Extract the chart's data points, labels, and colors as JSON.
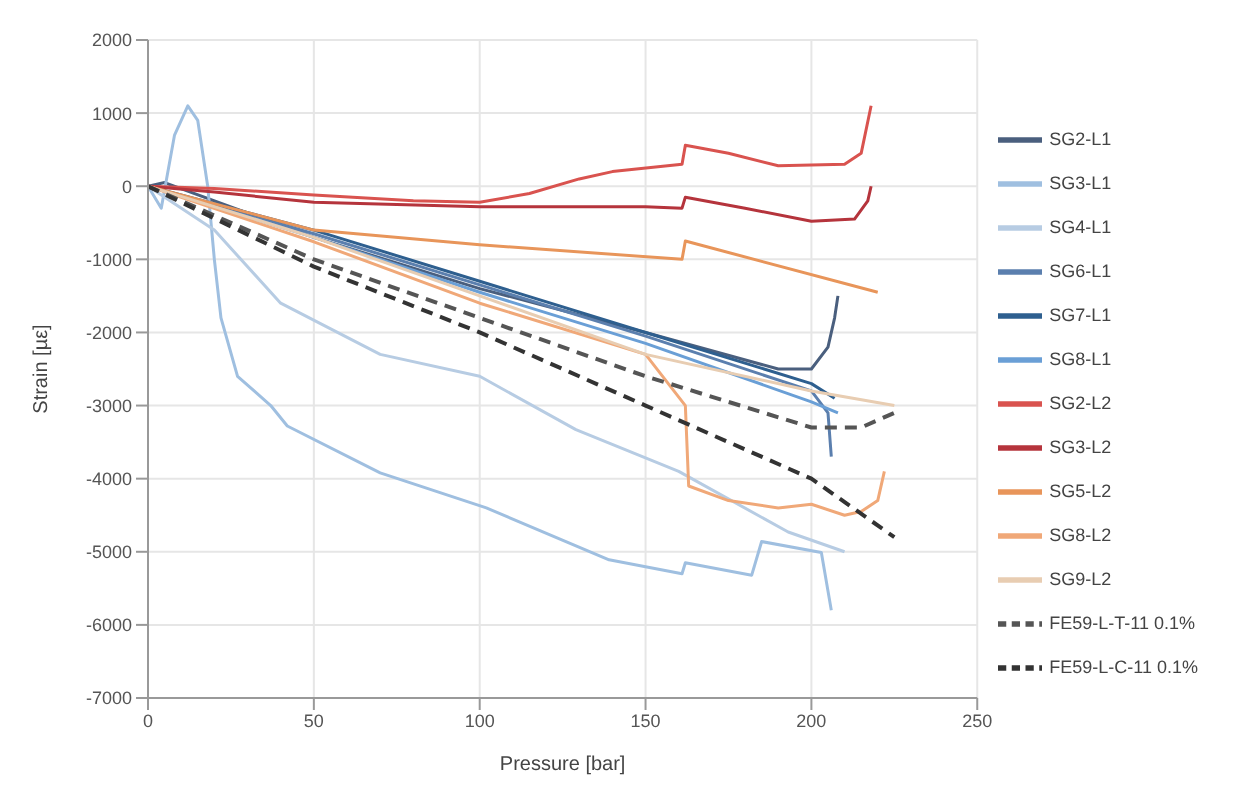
{
  "chart_data": {
    "type": "line",
    "xlabel": "Pressure [bar]",
    "ylabel": "Strain [µε]",
    "xlim": [
      0,
      250
    ],
    "xticks": [
      0,
      50,
      100,
      150,
      200,
      250
    ],
    "ylim": [
      -7000,
      2000
    ],
    "yticks": [
      -7000,
      -6000,
      -5000,
      -4000,
      -3000,
      -2000,
      -1000,
      0,
      1000,
      2000
    ],
    "grid": true,
    "legend": "right",
    "marker": "none",
    "series": [
      {
        "name": "SG2-L1",
        "color": "#4a5f7e",
        "x": [
          0,
          5,
          50,
          100,
          150,
          190,
          200,
          205,
          207,
          208
        ],
        "values": [
          0,
          50,
          -700,
          -1400,
          -2000,
          -2500,
          -2500,
          -2200,
          -1800,
          -1500
        ]
      },
      {
        "name": "SG3-L1",
        "color": "#9fbfe0",
        "x": [
          0,
          4,
          8,
          12,
          15,
          18,
          20,
          22,
          27,
          37,
          42,
          70,
          102,
          139,
          161,
          162,
          182,
          185,
          203,
          206
        ],
        "values": [
          0,
          -300,
          700,
          1100,
          900,
          0,
          -1000,
          -1800,
          -2600,
          -3000,
          -3280,
          -3920,
          -4400,
          -5110,
          -5300,
          -5150,
          -5320,
          -4860,
          -5010,
          -5800
        ]
      },
      {
        "name": "SG4-L1",
        "color": "#b7cce3",
        "x": [
          0,
          20,
          40,
          70,
          100,
          129,
          160,
          193,
          210
        ],
        "values": [
          0,
          -600,
          -1600,
          -2300,
          -2600,
          -3330,
          -3900,
          -4730,
          -5000
        ]
      },
      {
        "name": "SG6-L1",
        "color": "#5b7fae",
        "x": [
          0,
          50,
          100,
          150,
          200,
          205,
          206
        ],
        "values": [
          0,
          -650,
          -1350,
          -2050,
          -2800,
          -3100,
          -3700
        ]
      },
      {
        "name": "SG7-L1",
        "color": "#2e5f8f",
        "x": [
          0,
          50,
          100,
          150,
          200,
          207
        ],
        "values": [
          0,
          -600,
          -1300,
          -2000,
          -2700,
          -2900
        ]
      },
      {
        "name": "SG8-L1",
        "color": "#6a9fd6",
        "x": [
          0,
          50,
          100,
          150,
          200,
          208
        ],
        "values": [
          0,
          -700,
          -1450,
          -2150,
          -2950,
          -3100
        ]
      },
      {
        "name": "SG2-L2",
        "color": "#d9534f",
        "x": [
          0,
          20,
          50,
          80,
          100,
          115,
          130,
          140,
          161,
          162,
          175,
          190,
          210,
          215,
          218
        ],
        "values": [
          0,
          -30,
          -120,
          -200,
          -220,
          -100,
          100,
          200,
          300,
          560,
          450,
          280,
          300,
          450,
          1100
        ]
      },
      {
        "name": "SG3-L2",
        "color": "#b5343c",
        "x": [
          0,
          20,
          50,
          100,
          150,
          161,
          162,
          180,
          200,
          213,
          217,
          218
        ],
        "values": [
          0,
          -80,
          -220,
          -280,
          -280,
          -300,
          -150,
          -300,
          -480,
          -450,
          -200,
          0
        ]
      },
      {
        "name": "SG5-L2",
        "color": "#e8955a",
        "x": [
          0,
          50,
          100,
          161,
          162,
          220
        ],
        "values": [
          0,
          -600,
          -800,
          -1000,
          -750,
          -1450
        ]
      },
      {
        "name": "SG8-L2",
        "color": "#f0a878",
        "x": [
          0,
          50,
          100,
          150,
          162,
          163,
          175,
          190,
          200,
          210,
          215,
          220,
          222
        ],
        "values": [
          0,
          -760,
          -1600,
          -2300,
          -3000,
          -4100,
          -4300,
          -4400,
          -4350,
          -4500,
          -4450,
          -4300,
          -3900
        ]
      },
      {
        "name": "SG9-L2",
        "color": "#e8cdb2",
        "x": [
          0,
          50,
          100,
          150,
          200,
          225
        ],
        "values": [
          0,
          -700,
          -1500,
          -2300,
          -2800,
          -3000
        ]
      },
      {
        "name": "FE59-L-T-11 0.1%",
        "color": "#555555",
        "line_style": "dashed",
        "x": [
          0,
          50,
          100,
          150,
          200,
          215,
          225
        ],
        "values": [
          0,
          -1000,
          -1800,
          -2600,
          -3300,
          -3300,
          -3100
        ]
      },
      {
        "name": "FE59-L-C-11 0.1%",
        "color": "#333333",
        "line_style": "dashed",
        "x": [
          0,
          50,
          100,
          150,
          200,
          225
        ],
        "values": [
          0,
          -1100,
          -2000,
          -3000,
          -4000,
          -4800
        ]
      }
    ]
  }
}
